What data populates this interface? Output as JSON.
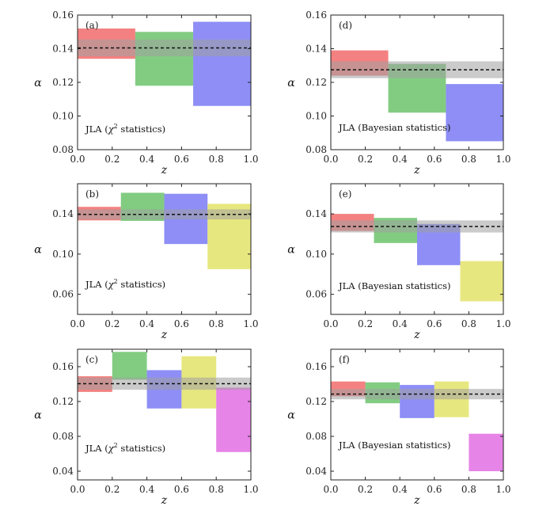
{
  "figure": {
    "colors": {
      "red": "#f26b6b",
      "green": "#6cc36c",
      "blue": "#7a7af5",
      "yellow": "#e3e36a",
      "magenta": "#e36ee3",
      "band": "#a0a0a0",
      "frame": "#222222"
    }
  },
  "chart_data": [
    {
      "type": "bar",
      "panel": "(a)",
      "note_prefix": "JLA (",
      "note_chi": "χ",
      "note_sup": "2",
      "note_suffix": " statistics)",
      "xlabel": "z",
      "ylabel": "α",
      "xlim": [
        0.0,
        1.0
      ],
      "ylim": [
        0.08,
        0.16
      ],
      "xticks": [
        "0.0",
        "0.2",
        "0.4",
        "0.6",
        "0.8",
        "1.0"
      ],
      "yticks": [
        "0.08",
        "0.10",
        "0.12",
        "0.14",
        "0.16"
      ],
      "mean": 0.1405,
      "band": [
        0.1355,
        0.1455
      ],
      "bins": [
        {
          "x0": 0.0,
          "x1": 0.333,
          "y0": 0.134,
          "y1": 0.152,
          "color": "red"
        },
        {
          "x0": 0.333,
          "x1": 0.667,
          "y0": 0.118,
          "y1": 0.15,
          "color": "green"
        },
        {
          "x0": 0.667,
          "x1": 1.0,
          "y0": 0.106,
          "y1": 0.156,
          "color": "blue"
        }
      ]
    },
    {
      "type": "bar",
      "panel": "(d)",
      "note": "JLA (Bayesian statistics)",
      "xlabel": "z",
      "ylabel": "α",
      "xlim": [
        0.0,
        1.0
      ],
      "ylim": [
        0.08,
        0.16
      ],
      "xticks": [
        "0.0",
        "0.2",
        "0.4",
        "0.6",
        "0.8",
        "1.0"
      ],
      "yticks": [
        "0.08",
        "0.10",
        "0.12",
        "0.14",
        "0.16"
      ],
      "mean": 0.1275,
      "band": [
        0.1225,
        0.1325
      ],
      "bins": [
        {
          "x0": 0.0,
          "x1": 0.333,
          "y0": 0.124,
          "y1": 0.139,
          "color": "red"
        },
        {
          "x0": 0.333,
          "x1": 0.667,
          "y0": 0.102,
          "y1": 0.131,
          "color": "green"
        },
        {
          "x0": 0.667,
          "x1": 1.0,
          "y0": 0.085,
          "y1": 0.119,
          "color": "blue"
        }
      ]
    },
    {
      "type": "bar",
      "panel": "(b)",
      "note_prefix": "JLA (",
      "note_chi": "χ",
      "note_sup": "2",
      "note_suffix": " statistics)",
      "xlabel": "z",
      "ylabel": "α",
      "xlim": [
        0.0,
        1.0
      ],
      "ylim": [
        0.04,
        0.17
      ],
      "xticks": [
        "0.0",
        "0.2",
        "0.4",
        "0.6",
        "0.8",
        "1.0"
      ],
      "yticks": [
        "0.06",
        "0.10",
        "0.14"
      ],
      "mean": 0.1395,
      "band": [
        0.1345,
        0.1445
      ],
      "bins": [
        {
          "x0": 0.0,
          "x1": 0.25,
          "y0": 0.1335,
          "y1": 0.147,
          "color": "red"
        },
        {
          "x0": 0.25,
          "x1": 0.5,
          "y0": 0.133,
          "y1": 0.161,
          "color": "green"
        },
        {
          "x0": 0.5,
          "x1": 0.75,
          "y0": 0.11,
          "y1": 0.16,
          "color": "blue"
        },
        {
          "x0": 0.75,
          "x1": 1.0,
          "y0": 0.085,
          "y1": 0.15,
          "color": "yellow"
        }
      ]
    },
    {
      "type": "bar",
      "panel": "(e)",
      "note": "JLA (Bayesian statistics)",
      "xlabel": "z",
      "ylabel": "α",
      "xlim": [
        0.0,
        1.0
      ],
      "ylim": [
        0.04,
        0.17
      ],
      "xticks": [
        "0.0",
        "0.2",
        "0.4",
        "0.6",
        "0.8",
        "1.0"
      ],
      "yticks": [
        "0.06",
        "0.10",
        "0.14"
      ],
      "mean": 0.1275,
      "band": [
        0.1215,
        0.1335
      ],
      "bins": [
        {
          "x0": 0.0,
          "x1": 0.25,
          "y0": 0.123,
          "y1": 0.14,
          "color": "red"
        },
        {
          "x0": 0.25,
          "x1": 0.5,
          "y0": 0.111,
          "y1": 0.136,
          "color": "green"
        },
        {
          "x0": 0.5,
          "x1": 0.75,
          "y0": 0.089,
          "y1": 0.13,
          "color": "blue"
        },
        {
          "x0": 0.75,
          "x1": 1.0,
          "y0": 0.053,
          "y1": 0.093,
          "color": "yellow"
        }
      ]
    },
    {
      "type": "bar",
      "panel": "(c)",
      "note_prefix": "JLA (",
      "note_chi": "χ",
      "note_sup": "2",
      "note_suffix": " statistics)",
      "xlabel": "z",
      "ylabel": "α",
      "xlim": [
        0.0,
        1.0
      ],
      "ylim": [
        0.03,
        0.18
      ],
      "xticks": [
        "0.0",
        "0.2",
        "0.4",
        "0.6",
        "0.8",
        "1.0"
      ],
      "yticks": [
        "0.04",
        "0.08",
        "0.12",
        "0.16"
      ],
      "mean": 0.1405,
      "band": [
        0.1335,
        0.1475
      ],
      "bins": [
        {
          "x0": 0.0,
          "x1": 0.2,
          "y0": 0.131,
          "y1": 0.149,
          "color": "red"
        },
        {
          "x0": 0.2,
          "x1": 0.4,
          "y0": 0.145,
          "y1": 0.177,
          "color": "green"
        },
        {
          "x0": 0.4,
          "x1": 0.6,
          "y0": 0.112,
          "y1": 0.156,
          "color": "blue"
        },
        {
          "x0": 0.6,
          "x1": 0.8,
          "y0": 0.112,
          "y1": 0.172,
          "color": "yellow"
        },
        {
          "x0": 0.8,
          "x1": 1.0,
          "y0": 0.062,
          "y1": 0.136,
          "color": "magenta"
        }
      ]
    },
    {
      "type": "bar",
      "panel": "(f)",
      "note": "JLA (Bayesian statistics)",
      "xlabel": "z",
      "ylabel": "α",
      "xlim": [
        0.0,
        1.0
      ],
      "ylim": [
        0.03,
        0.18
      ],
      "xticks": [
        "0.0",
        "0.2",
        "0.4",
        "0.6",
        "0.8",
        "1.0"
      ],
      "yticks": [
        "0.04",
        "0.08",
        "0.12",
        "0.16"
      ],
      "mean": 0.1285,
      "band": [
        0.1225,
        0.1345
      ],
      "bins": [
        {
          "x0": 0.0,
          "x1": 0.2,
          "y0": 0.126,
          "y1": 0.143,
          "color": "red"
        },
        {
          "x0": 0.2,
          "x1": 0.4,
          "y0": 0.118,
          "y1": 0.142,
          "color": "green"
        },
        {
          "x0": 0.4,
          "x1": 0.6,
          "y0": 0.101,
          "y1": 0.139,
          "color": "blue"
        },
        {
          "x0": 0.6,
          "x1": 0.8,
          "y0": 0.102,
          "y1": 0.143,
          "color": "yellow"
        },
        {
          "x0": 0.8,
          "x1": 1.0,
          "y0": 0.04,
          "y1": 0.083,
          "color": "magenta"
        }
      ]
    }
  ]
}
